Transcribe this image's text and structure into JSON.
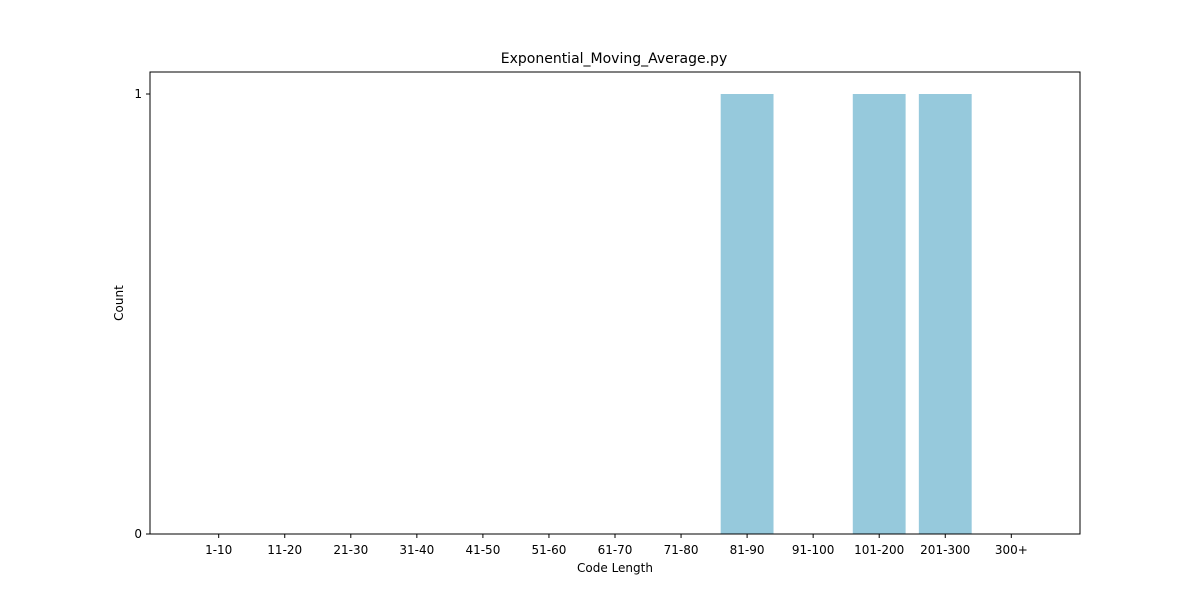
{
  "chart_data": {
    "type": "bar",
    "title": "Exponential_Moving_Average.py",
    "xlabel": "Code Length",
    "ylabel": "Count",
    "categories": [
      "1-10",
      "11-20",
      "21-30",
      "31-40",
      "41-50",
      "51-60",
      "61-70",
      "71-80",
      "81-90",
      "91-100",
      "101-200",
      "201-300",
      "300+"
    ],
    "values": [
      0,
      0,
      0,
      0,
      0,
      0,
      0,
      0,
      1,
      0,
      1,
      1,
      0
    ],
    "ylim": [
      0,
      1
    ],
    "yticks": [
      "0",
      "1"
    ],
    "grid": false,
    "bar_color": "#96c9dc"
  }
}
